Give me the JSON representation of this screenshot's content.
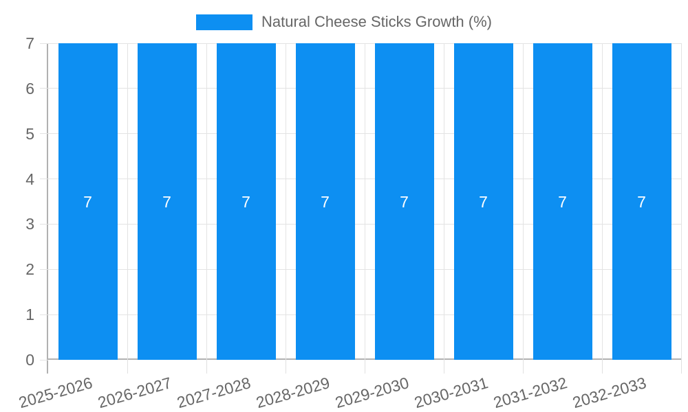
{
  "chart_data": {
    "type": "bar",
    "title": "Natural Cheese Sticks Growth (%)",
    "legend_position": "top",
    "categories": [
      "2025-2026",
      "2026-2027",
      "2027-2028",
      "2028-2029",
      "2029-2030",
      "2030-2031",
      "2031-2032",
      "2032-2033"
    ],
    "values": [
      7,
      7,
      7,
      7,
      7,
      7,
      7,
      7
    ],
    "bar_labels": [
      "7",
      "7",
      "7",
      "7",
      "7",
      "7",
      "7",
      "7"
    ],
    "xlabel": "",
    "ylabel": "",
    "ylim": [
      0,
      7
    ],
    "yticks": [
      0,
      1,
      2,
      3,
      4,
      5,
      6,
      7
    ],
    "grid": true,
    "colors": {
      "bar": "#0d8ff2",
      "bar_label_text": "#ffffff",
      "axis_text": "#666666",
      "legend_text": "#666666",
      "gridline": "#e3e3e3",
      "axis_line": "#b1b1b1",
      "background": "#ffffff"
    }
  }
}
